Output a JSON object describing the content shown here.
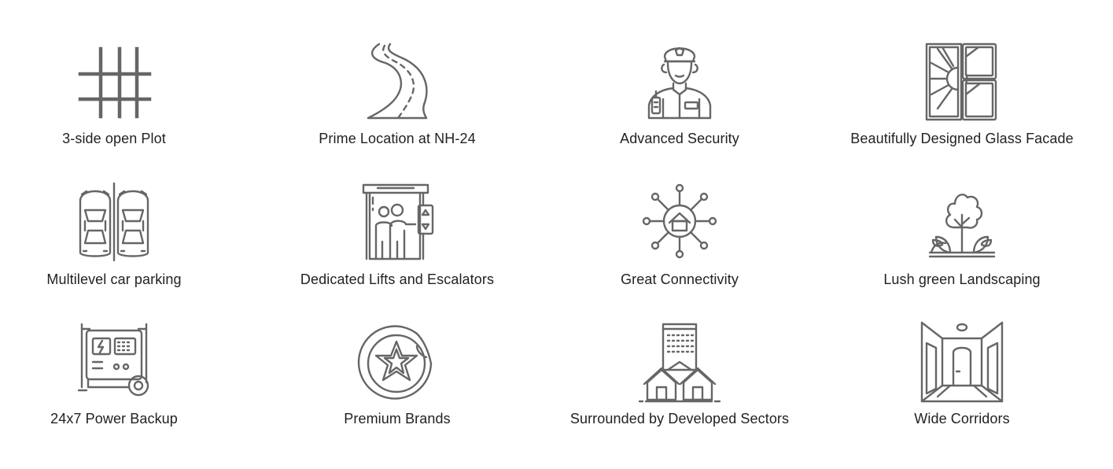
{
  "features": [
    {
      "label": "3-side open Plot",
      "icon": "grid-plot-icon"
    },
    {
      "label": "Prime Location at NH-24",
      "icon": "road-icon"
    },
    {
      "label": "Advanced Security",
      "icon": "security-guard-icon"
    },
    {
      "label": "Beautifully Designed Glass Facade",
      "icon": "glass-facade-icon"
    },
    {
      "label": "Multilevel car parking",
      "icon": "car-parking-icon"
    },
    {
      "label": "Dedicated Lifts and Escalators",
      "icon": "elevator-icon"
    },
    {
      "label": "Great Connectivity",
      "icon": "connectivity-hub-icon"
    },
    {
      "label": "Lush green Landscaping",
      "icon": "tree-plants-icon"
    },
    {
      "label": "24x7 Power Backup",
      "icon": "generator-icon"
    },
    {
      "label": "Premium Brands",
      "icon": "star-badge-icon"
    },
    {
      "label": "Surrounded by Developed Sectors",
      "icon": "buildings-icon"
    },
    {
      "label": "Wide Corridors",
      "icon": "corridor-icon"
    }
  ],
  "colors": {
    "icon_stroke": "#666666",
    "label_text": "#222222",
    "background": "#ffffff"
  }
}
